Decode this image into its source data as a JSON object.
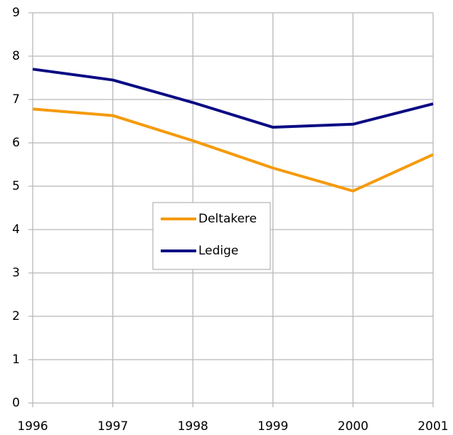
{
  "chart_data": {
    "type": "line",
    "x": [
      1996,
      1997,
      1998,
      1999,
      2000,
      2001
    ],
    "xlim": [
      1996,
      2001
    ],
    "xticks": [
      1996,
      1997,
      1998,
      1999,
      2000,
      2001
    ],
    "ylim": [
      0,
      9
    ],
    "yticks": [
      0,
      1,
      2,
      3,
      4,
      5,
      6,
      7,
      8,
      9
    ],
    "grid": true,
    "series": [
      {
        "name": "Deltakere",
        "color": "#f59a0c",
        "values": [
          6.78,
          6.63,
          6.05,
          5.42,
          4.89,
          5.73
        ]
      },
      {
        "name": "Ledige",
        "color": "#0b0b84",
        "values": [
          7.7,
          7.45,
          6.93,
          6.36,
          6.43,
          6.9
        ]
      }
    ]
  }
}
